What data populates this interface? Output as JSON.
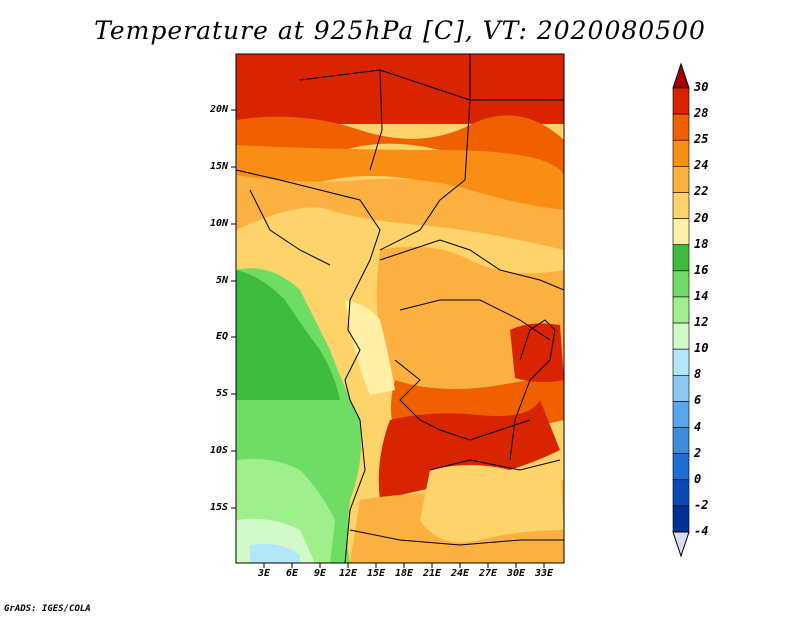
{
  "title": "Temperature at 925hPa [C], VT: 2020080500",
  "credit": "GrADS: IGES/COLA",
  "map": {
    "lat_labels": [
      "20N",
      "15N",
      "10N",
      "5N",
      "EQ",
      "5S",
      "10S",
      "15S"
    ],
    "lon_labels": [
      "3E",
      "6E",
      "9E",
      "12E",
      "15E",
      "18E",
      "21E",
      "24E",
      "27E",
      "30E",
      "33E"
    ]
  },
  "colorbar": {
    "labels": [
      "30",
      "28",
      "25",
      "24",
      "22",
      "20",
      "18",
      "16",
      "14",
      "12",
      "10",
      "8",
      "6",
      "4",
      "2",
      "0",
      "-2",
      "-4"
    ],
    "colors": [
      "#a50000",
      "#d82400",
      "#f06000",
      "#f88e14",
      "#fbb040",
      "#fdd36a",
      "#fff0a5",
      "#3cbc3c",
      "#6fdc64",
      "#9ff08c",
      "#d2fac8",
      "#b4e6fa",
      "#8cc8f5",
      "#5aa5ec",
      "#3c8ce0",
      "#1e6ed2",
      "#0a4ab4",
      "#003296",
      "#0a0a5a"
    ]
  },
  "colors": {
    "land_hot": "#d82400",
    "ocean_cool": "#6fdc64"
  }
}
